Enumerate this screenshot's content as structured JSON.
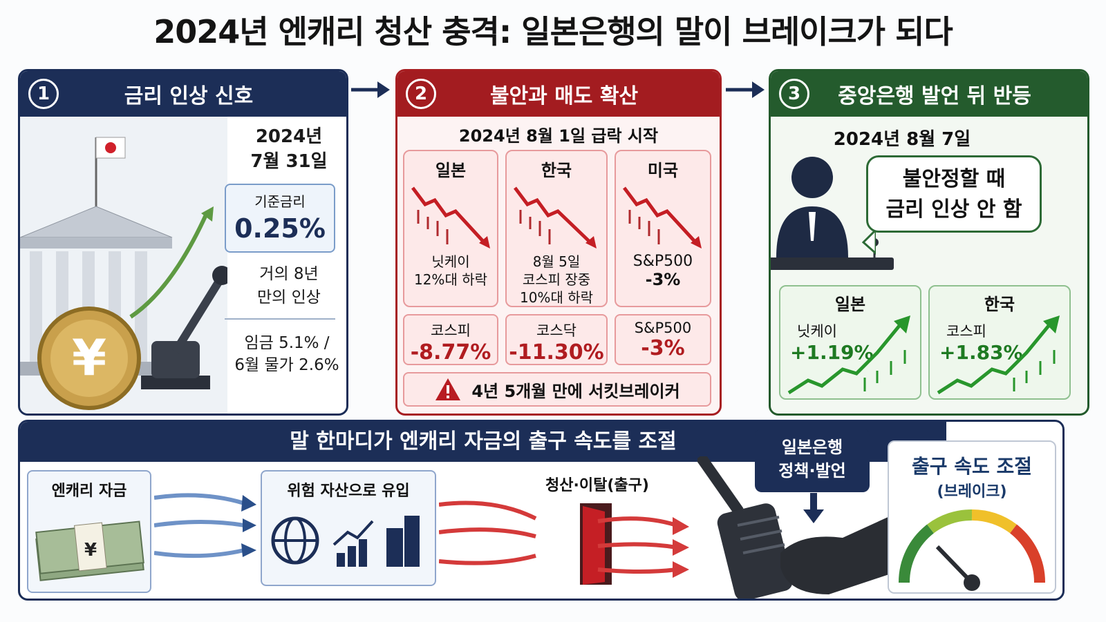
{
  "title": "2024년 엔캐리 청산 충격: 일본은행의 말이 브레이크가 되다",
  "panel1": {
    "num": "1",
    "title": "금리 인상 신호",
    "date_line1": "2024년",
    "date_line2": "7월 31일",
    "rate_label": "기준금리",
    "rate_value": "0.25%",
    "note_line1": "거의 8년",
    "note_line2": "만의 인상",
    "wage_line1": "임금 5.1% /",
    "wage_line2": "6월 물가 2.6%",
    "yen_symbol": "¥"
  },
  "panel2": {
    "num": "2",
    "title": "불안과 매도 확산",
    "subtitle": "2024년 8월 1일 급락 시작",
    "markets": [
      {
        "name": "일본",
        "desc1": "닛케이",
        "desc2": "12%대 하락",
        "desc3": ""
      },
      {
        "name": "한국",
        "desc1": "8월 5일",
        "desc2": "코스피 장중",
        "desc3": "10%대 하락"
      },
      {
        "name": "미국",
        "desc1": "S&P500",
        "desc2": "-3%",
        "desc3": ""
      }
    ],
    "indices": [
      {
        "name": "코스피",
        "value": "-8.77%"
      },
      {
        "name": "코스닥",
        "value": "-11.30%"
      },
      {
        "name": "S&P500",
        "value": "-3%"
      }
    ],
    "warning": "4년 5개월 만에 서킷브레이커"
  },
  "panel3": {
    "num": "3",
    "title": "중앙은행 발언 뒤 반등",
    "date": "2024년 8월 7일",
    "bubble_line1": "불안정할 때",
    "bubble_line2": "금리 인상 안 함",
    "rebounds": [
      {
        "country": "일본",
        "index": "닛케이",
        "value": "+1.19%"
      },
      {
        "country": "한국",
        "index": "코스피",
        "value": "+1.83%"
      }
    ]
  },
  "bottom": {
    "title": "말 한마디가 엔캐리 자금의 출구 속도를 조절",
    "carry_label": "엔캐리 자금",
    "risk_label": "위험 자산으로 유입",
    "exit_label": "청산·이탈(출구)",
    "policy_line1": "일본은행",
    "policy_line2": "정책·발언",
    "gauge_line1": "출구 속도 조절",
    "gauge_line2": "(브레이크)"
  },
  "colors": {
    "navy": "#1c2e57",
    "red": "#a31c20",
    "green": "#245b2d"
  }
}
